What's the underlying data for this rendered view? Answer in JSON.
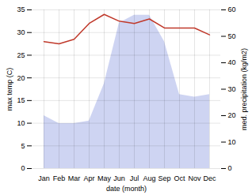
{
  "chart_data": {
    "type": "line",
    "xlabel": "date (month)",
    "ylabel": "max temp (C)",
    "y2label": "med. precipitation (kg/m2)",
    "categories": [
      "Jan",
      "Feb",
      "Mar",
      "Apr",
      "May",
      "Jun",
      "Jul",
      "Aug",
      "Sep",
      "Oct",
      "Nov",
      "Dec"
    ],
    "series": [
      {
        "type": "area",
        "axis": "y2",
        "color": "#c5cdf0",
        "values": [
          20,
          17,
          17,
          18,
          32,
          55,
          58,
          58,
          48,
          28,
          27,
          28
        ]
      },
      {
        "type": "line",
        "color": "#c0392b",
        "values": [
          28,
          27.5,
          28.5,
          32,
          34,
          32.5,
          32,
          33,
          31,
          31,
          31,
          29.5
        ]
      }
    ],
    "ylim": [
      0,
      35
    ],
    "yticks": [
      0,
      5,
      10,
      15,
      20,
      25,
      30,
      35
    ],
    "y2lim": [
      0,
      60
    ],
    "y2ticks": [
      0,
      10,
      20,
      30,
      40,
      50,
      60
    ],
    "grid": true
  }
}
